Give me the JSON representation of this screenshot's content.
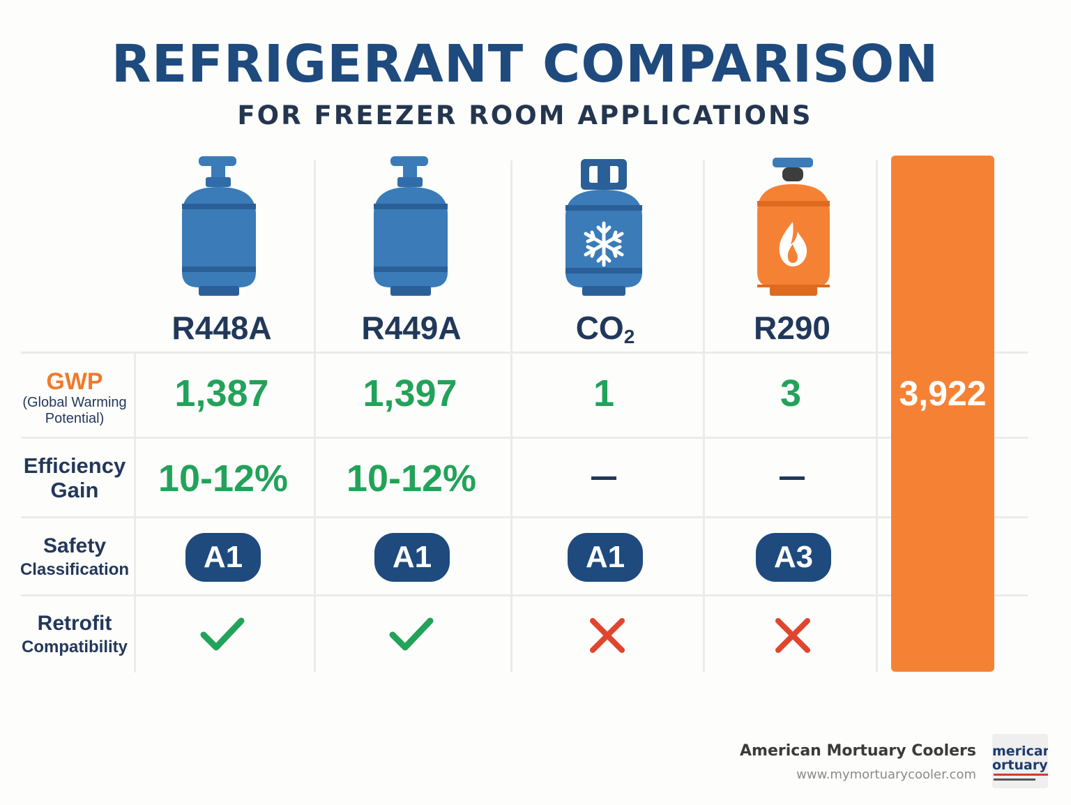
{
  "header": {
    "title": "REFRIGERANT COMPARISON",
    "subtitle": "FOR FREEZER ROOM APPLICATIONS"
  },
  "columns": [
    {
      "name": "R448A",
      "icon": "blue-gas-cylinder-icon"
    },
    {
      "name": "R449A",
      "icon": "blue-gas-cylinder-icon"
    },
    {
      "name": "CO",
      "name_subscript": "2",
      "icon": "snowflake-cylinder-icon"
    },
    {
      "name": "R290",
      "icon": "flame-cylinder-icon"
    }
  ],
  "rows": {
    "gwp": {
      "label": "GWP",
      "sublabel_line1": "(Global Warming",
      "sublabel_line2": "Potential)",
      "values": [
        "1,387",
        "1,397",
        "1",
        "3"
      ]
    },
    "efficiency": {
      "label_line1": "Efficiency",
      "label_line2": "Gain",
      "values": [
        "10-12%",
        "10-12%",
        "–",
        "–"
      ]
    },
    "safety": {
      "label_line1": "Safety",
      "label_line2": "Classification",
      "values": [
        "A1",
        "A1",
        "A1",
        "A3"
      ]
    },
    "retrofit": {
      "label_line1": "Retrofit",
      "label_line2": "Compatibility",
      "values": [
        "check-icon",
        "check-icon",
        "x-icon",
        "x-icon"
      ]
    }
  },
  "highlight_column": {
    "gwp_value": "3,922",
    "color": "#f58234"
  },
  "footer": {
    "company": "American Mortuary Coolers",
    "url": "www.mymortuarycooler.com",
    "logo_text_line1": "merican",
    "logo_text_line2": "ortuary"
  },
  "colors": {
    "title": "#1e4a7e",
    "positive_value": "#22a25a",
    "gwp_label": "#f07a2b",
    "badge": "#1e4a7e",
    "cross": "#e0452f"
  }
}
